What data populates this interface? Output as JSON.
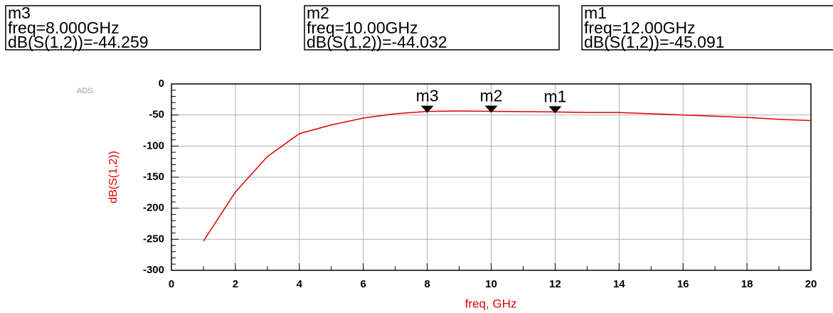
{
  "chart_data": {
    "type": "line",
    "watermark": "ADS",
    "xlabel": "freq, GHz",
    "ylabel": "dB(S(1,2))",
    "x": [
      1,
      2,
      3,
      4,
      5,
      6,
      7,
      8,
      9,
      10,
      11,
      12,
      13,
      14,
      15,
      16,
      17,
      18,
      19,
      20
    ],
    "series": [
      {
        "name": "dB(S(1,2))",
        "color": "#e00000",
        "values": [
          -253,
          -174,
          -117,
          -80,
          -66,
          -55,
          -48,
          -44.259,
          -43.5,
          -44.032,
          -44.5,
          -45.091,
          -46,
          -46,
          -48,
          -50,
          -52,
          -54,
          -57,
          -59
        ]
      }
    ],
    "xlim": [
      0,
      20
    ],
    "xticks": [
      0,
      2,
      4,
      6,
      8,
      10,
      12,
      14,
      16,
      18,
      20
    ],
    "ylim": [
      -300,
      0
    ],
    "yticks": [
      0,
      -50,
      -100,
      -150,
      -200,
      -250,
      -300
    ],
    "grid": true,
    "markers": [
      {
        "name": "m3",
        "freq_label": "freq=8.000GHz",
        "value_label": "dB(S(1,2))=-44.259",
        "x": 8,
        "y": -44.259
      },
      {
        "name": "m2",
        "freq_label": "freq=10.00GHz",
        "value_label": "dB(S(1,2))=-44.032",
        "x": 10,
        "y": -44.032
      },
      {
        "name": "m1",
        "freq_label": "freq=12.00GHz",
        "value_label": "dB(S(1,2))=-45.091",
        "x": 12,
        "y": -45.091
      }
    ]
  }
}
